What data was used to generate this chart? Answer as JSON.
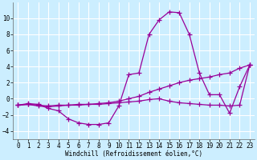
{
  "bg_color": "#cceeff",
  "grid_color": "#ffffff",
  "line_color": "#990099",
  "marker": "+",
  "markersize": 4,
  "linewidth": 0.9,
  "xlim": [
    -0.5,
    23.5
  ],
  "ylim": [
    -5,
    12
  ],
  "yticks": [
    -4,
    -2,
    0,
    2,
    4,
    6,
    8,
    10
  ],
  "xticks": [
    0,
    1,
    2,
    3,
    4,
    5,
    6,
    7,
    8,
    9,
    10,
    11,
    12,
    13,
    14,
    15,
    16,
    17,
    18,
    19,
    20,
    21,
    22,
    23
  ],
  "xlabel": "Windchill (Refroidissement éolien,°C)",
  "xlabel_fontsize": 5.5,
  "tick_fontsize": 5.5,
  "series1": [
    [
      0,
      -0.8
    ],
    [
      1,
      -0.6
    ],
    [
      2,
      -0.7
    ],
    [
      3,
      -1.2
    ],
    [
      4,
      -1.5
    ],
    [
      5,
      -2.5
    ],
    [
      6,
      -3.0
    ],
    [
      7,
      -3.2
    ],
    [
      8,
      -3.2
    ],
    [
      9,
      -3.0
    ],
    [
      10,
      -0.9
    ],
    [
      11,
      3.0
    ],
    [
      12,
      3.2
    ],
    [
      13,
      8.0
    ],
    [
      14,
      9.8
    ],
    [
      15,
      10.8
    ],
    [
      16,
      10.7
    ],
    [
      17,
      8.0
    ],
    [
      18,
      3.2
    ],
    [
      19,
      0.5
    ],
    [
      20,
      0.5
    ],
    [
      21,
      -1.8
    ],
    [
      22,
      1.5
    ],
    [
      23,
      4.2
    ]
  ],
  "series2": [
    [
      0,
      -0.8
    ],
    [
      1,
      -0.7
    ],
    [
      2,
      -0.8
    ],
    [
      3,
      -0.9
    ],
    [
      4,
      -0.8
    ],
    [
      5,
      -0.8
    ],
    [
      6,
      -0.7
    ],
    [
      7,
      -0.7
    ],
    [
      8,
      -0.6
    ],
    [
      9,
      -0.5
    ],
    [
      10,
      -0.3
    ],
    [
      11,
      0.0
    ],
    [
      12,
      0.3
    ],
    [
      13,
      0.8
    ],
    [
      14,
      1.2
    ],
    [
      15,
      1.6
    ],
    [
      16,
      2.0
    ],
    [
      17,
      2.3
    ],
    [
      18,
      2.5
    ],
    [
      19,
      2.7
    ],
    [
      20,
      3.0
    ],
    [
      21,
      3.2
    ],
    [
      22,
      3.8
    ],
    [
      23,
      4.2
    ]
  ],
  "series3": [
    [
      0,
      -0.8
    ],
    [
      1,
      -0.7
    ],
    [
      2,
      -0.9
    ],
    [
      3,
      -1.0
    ],
    [
      4,
      -0.9
    ],
    [
      5,
      -0.8
    ],
    [
      6,
      -0.8
    ],
    [
      7,
      -0.7
    ],
    [
      8,
      -0.7
    ],
    [
      9,
      -0.6
    ],
    [
      10,
      -0.5
    ],
    [
      11,
      -0.4
    ],
    [
      12,
      -0.3
    ],
    [
      13,
      -0.1
    ],
    [
      14,
      0.0
    ],
    [
      15,
      -0.3
    ],
    [
      16,
      -0.5
    ],
    [
      17,
      -0.6
    ],
    [
      18,
      -0.7
    ],
    [
      19,
      -0.8
    ],
    [
      20,
      -0.8
    ],
    [
      21,
      -0.9
    ],
    [
      22,
      -0.8
    ],
    [
      23,
      4.2
    ]
  ]
}
